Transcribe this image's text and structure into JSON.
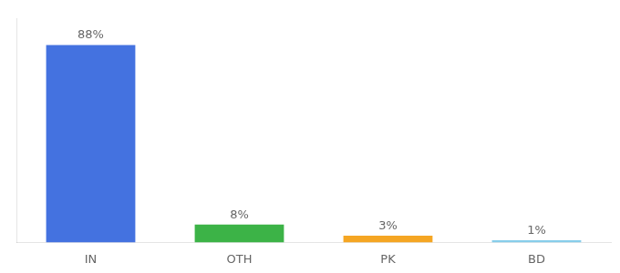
{
  "chart_data": {
    "type": "bar",
    "categories": [
      "IN",
      "OTH",
      "PK",
      "BD"
    ],
    "values": [
      88,
      8,
      3,
      1
    ],
    "value_labels": [
      "88%",
      "8%",
      "3%",
      "1%"
    ],
    "colors": [
      "#4472e0",
      "#3cb347",
      "#f5a623",
      "#87ceeb"
    ],
    "ylim": [
      0,
      100
    ],
    "grid": false,
    "data_labels": true,
    "tick_labels": "x"
  }
}
